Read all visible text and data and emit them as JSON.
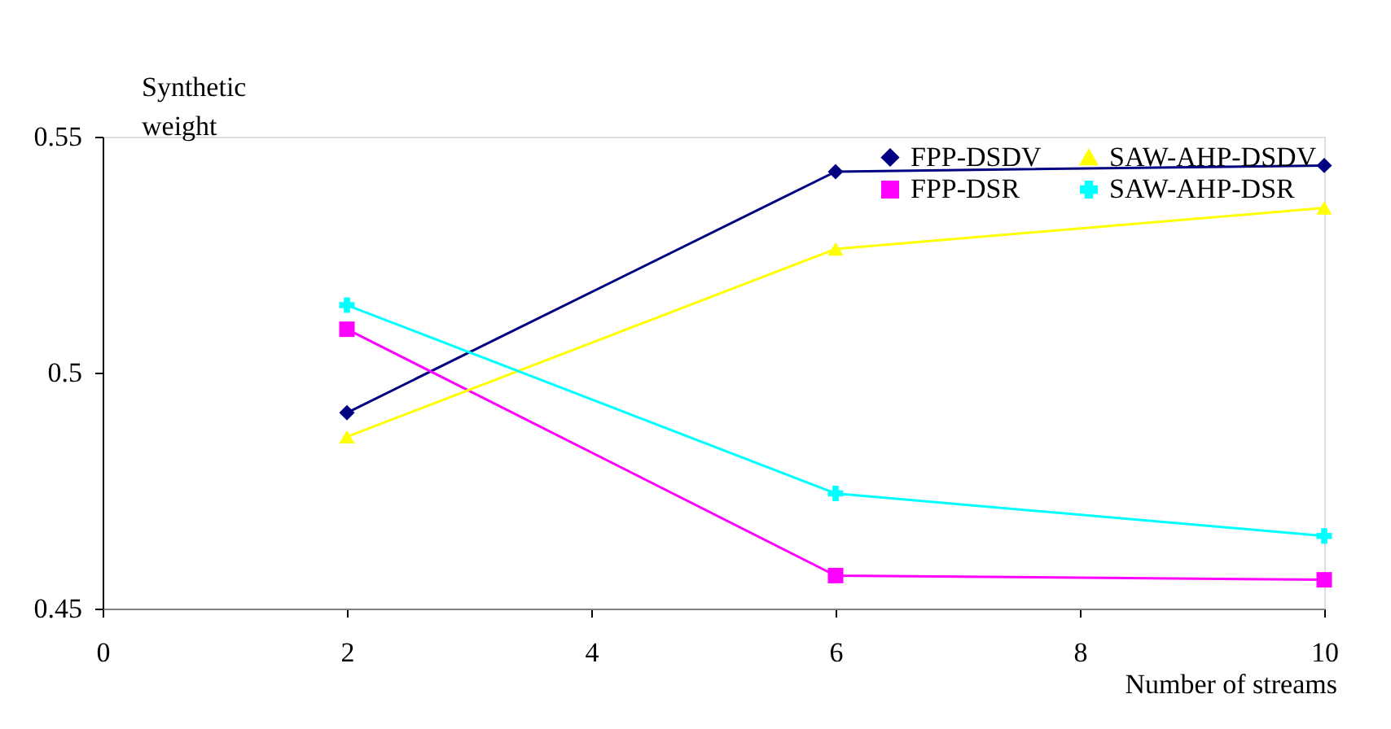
{
  "chart_data": {
    "type": "line",
    "xlabel": "Number of streams",
    "ylabel": "Synthetic weight",
    "x": [
      2,
      6,
      10
    ],
    "xlim": [
      0,
      10
    ],
    "xticks": [
      0,
      2,
      4,
      6,
      8,
      10
    ],
    "ylim": [
      0.45,
      0.55
    ],
    "yticks": [
      0.45,
      0.5,
      0.55
    ],
    "series": [
      {
        "name": "FPP-DSDV",
        "color": "#000080",
        "marker": "diamond",
        "values": [
          0.4915,
          0.5426,
          0.5439
        ]
      },
      {
        "name": "FPP-DSR",
        "color": "#ff00ff",
        "marker": "square",
        "values": [
          0.5092,
          0.457,
          0.4561
        ]
      },
      {
        "name": "SAW-AHP-DSDV",
        "color": "#ffff00",
        "marker": "triangle",
        "values": [
          0.4864,
          0.5262,
          0.5349
        ]
      },
      {
        "name": "SAW-AHP-DSR",
        "color": "#00ffff",
        "marker": "cross",
        "values": [
          0.5143,
          0.4744,
          0.4654
        ]
      }
    ],
    "legend": "top right",
    "grid": false
  }
}
